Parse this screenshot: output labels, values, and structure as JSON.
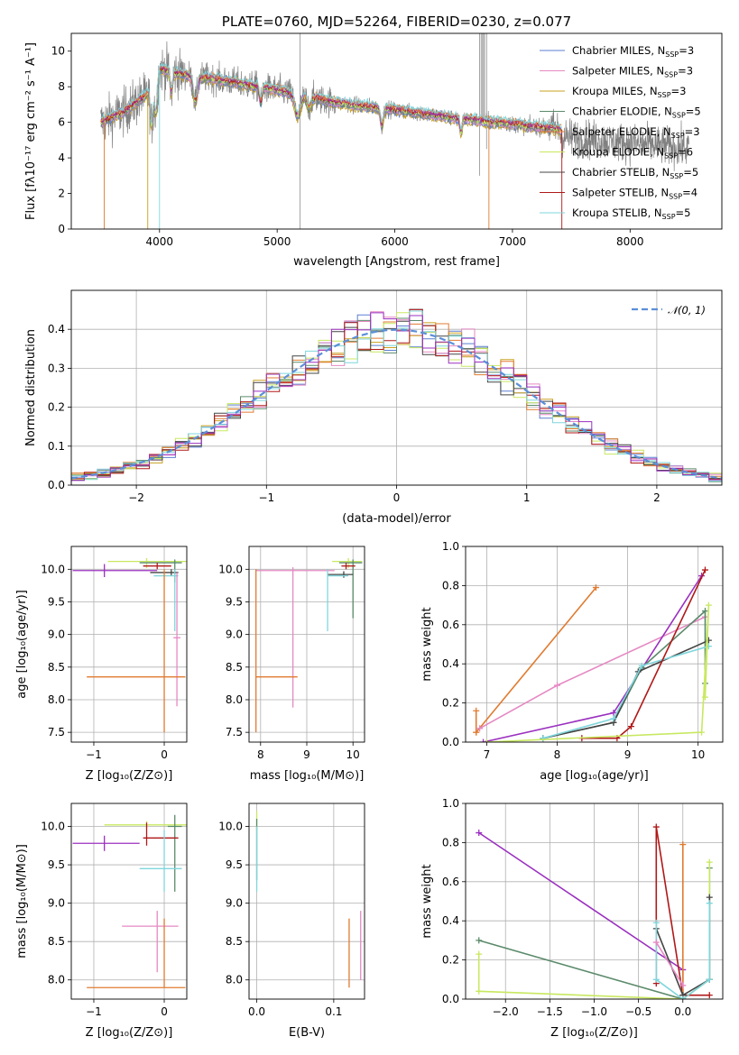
{
  "colors": {
    "Chabrier MILES": "#5b7fd0",
    "Salpeter MILES": "#e589c3",
    "Kroupa MILES": "#c8a020",
    "Chabrier ELODIE": "#5a8a6a",
    "Salpeter ELODIE": "#e07b30",
    "Kroupa ELODIE": "#c8e860",
    "Chabrier STELIB": "#444444",
    "Salpeter STELIB": "#b01818",
    "Kroupa STELIB": "#7fd6dc",
    "purple": "#9b30c0",
    "data": "#808080",
    "normal": "#5b8fd8"
  },
  "chart_data": [
    {
      "id": "spectrum",
      "type": "line",
      "title": "PLATE=0760, MJD=52264, FIBERID=0230, z=0.077",
      "xlabel": "wavelength [Angstrom, rest frame]",
      "ylabel": "Flux [fλ10⁻¹⁷ erg cm⁻² s⁻¹ A⁻¹]",
      "xlim": [
        3250,
        8780
      ],
      "ylim": [
        0,
        11
      ],
      "xticks": [
        4000,
        5000,
        6000,
        7000,
        8000
      ],
      "yticks": [
        0,
        2,
        4,
        6,
        8,
        10
      ],
      "grid": false,
      "legend": "top-right",
      "legend_entries": [
        {
          "label": "Chabrier MILES, N",
          "sub": "SSP",
          "val": "=3",
          "model": "Chabrier MILES"
        },
        {
          "label": "Salpeter MILES, N",
          "sub": "SSP",
          "val": "=3",
          "model": "Salpeter MILES"
        },
        {
          "label": "Kroupa MILES, N",
          "sub": "SSP",
          "val": "=3",
          "model": "Kroupa MILES"
        },
        {
          "label": "Chabrier ELODIE, N",
          "sub": "SSP",
          "val": "=5",
          "model": "Chabrier ELODIE"
        },
        {
          "label": "Salpeter ELODIE, N",
          "sub": "SSP",
          "val": "=3",
          "model": "Salpeter ELODIE"
        },
        {
          "label": "Kroupa ELODIE, N",
          "sub": "SSP",
          "val": "=6",
          "model": "Kroupa ELODIE"
        },
        {
          "label": "Chabrier STELIB, N",
          "sub": "SSP",
          "val": "=5",
          "model": "Chabrier STELIB"
        },
        {
          "label": "Salpeter STELIB, N",
          "sub": "SSP",
          "val": "=4",
          "model": "Salpeter STELIB"
        },
        {
          "label": "Kroupa STELIB, N",
          "sub": "SSP",
          "val": "=5",
          "model": "Kroupa STELIB"
        }
      ],
      "continuum": {
        "x": [
          3500,
          3700,
          3900,
          4000,
          4200,
          4500,
          5000,
          5500,
          6000,
          6500,
          7000,
          7400
        ],
        "y": [
          6.0,
          6.6,
          7.6,
          9.0,
          8.7,
          8.4,
          7.8,
          7.1,
          6.7,
          6.25,
          5.9,
          5.6
        ]
      },
      "data_range": [
        3500,
        8500
      ]
    },
    {
      "id": "residuals",
      "type": "histogram",
      "xlabel": "(data-model)/error",
      "ylabel": "Normed distribution",
      "xlim": [
        -2.5,
        2.5
      ],
      "ylim": [
        0,
        0.5
      ],
      "xticks": [
        -2,
        -1,
        0,
        1,
        2
      ],
      "yticks": [
        0.0,
        0.1,
        0.2,
        0.3,
        0.4
      ],
      "grid": true,
      "legend": "top-right",
      "legend_entries": [
        {
          "label": "𝒩(0, 1)"
        }
      ],
      "series": [
        {
          "name": "𝒩(0, 1)",
          "type": "line",
          "mean": 0,
          "sigma": 1
        }
      ],
      "bins": 50
    },
    {
      "id": "age_vs_Z",
      "type": "scatter",
      "xlabel": "Z [log₁₀(Z/Z⊙)]",
      "ylabel": "age  [log₁₀(age/yr)]",
      "xlim": [
        -1.32,
        0.32
      ],
      "ylim": [
        7.35,
        10.35
      ],
      "xticks": [
        -1,
        0
      ],
      "yticks": [
        7.5,
        8.0,
        8.5,
        9.0,
        9.5,
        10.0
      ],
      "grid": true,
      "points": [
        {
          "model": "Kroupa ELODIE",
          "x": -0.25,
          "y": 10.12,
          "xerr": [
            0.55,
            0.6
          ],
          "yerr": [
            0.1,
            0.05
          ]
        },
        {
          "model": "Chabrier ELODIE",
          "x": 0.15,
          "y": 10.1,
          "xerr": [
            0.5,
            0.1
          ],
          "yerr": [
            0.3,
            0.05
          ]
        },
        {
          "model": "Salpeter STELIB",
          "x": -0.1,
          "y": 10.05,
          "xerr": [
            0.2,
            0.2
          ],
          "yerr": [
            0.05,
            0.05
          ]
        },
        {
          "model": "purple",
          "x": -0.85,
          "y": 9.98,
          "xerr": [
            0.45,
            0.75
          ],
          "yerr": [
            0.1,
            0.1
          ]
        },
        {
          "model": "Chabrier STELIB",
          "x": 0.1,
          "y": 9.95,
          "xerr": [
            0.3,
            0.1
          ],
          "yerr": [
            0.05,
            0.05
          ]
        },
        {
          "model": "Kroupa STELIB",
          "x": 0.15,
          "y": 9.9,
          "xerr": [
            0.3,
            0.05
          ],
          "yerr": [
            0.85,
            0.1
          ]
        },
        {
          "model": "Salpeter MILES",
          "x": 0.18,
          "y": 8.95,
          "xerr": [
            0.05,
            0.05
          ],
          "yerr": [
            1.05,
            1.0
          ]
        },
        {
          "model": "Salpeter ELODIE",
          "x": 0.0,
          "y": 8.35,
          "xerr": [
            1.1,
            0.3
          ],
          "yerr": [
            0.85,
            1.65
          ]
        }
      ]
    },
    {
      "id": "age_vs_mass",
      "type": "scatter",
      "xlabel": "mass [log₁₀(M/M⊙)]",
      "ylabel": "",
      "xlim": [
        7.75,
        10.25
      ],
      "ylim": [
        7.35,
        10.35
      ],
      "xticks": [
        8,
        9,
        10
      ],
      "yticks": [
        7.5,
        8.0,
        8.5,
        9.0,
        9.5,
        10.0
      ],
      "grid": true,
      "points": [
        {
          "model": "Kroupa ELODIE",
          "x": 9.9,
          "y": 10.12,
          "xerr": [
            0.35,
            0.3
          ],
          "yerr": [
            0.1,
            0.05
          ]
        },
        {
          "model": "Chabrier ELODIE",
          "x": 10.0,
          "y": 10.1,
          "xerr": [
            0.3,
            0.2
          ],
          "yerr": [
            0.85,
            0.05
          ]
        },
        {
          "model": "Salpeter STELIB",
          "x": 9.85,
          "y": 10.05,
          "xerr": [
            0.1,
            0.2
          ],
          "yerr": [
            0.05,
            0.05
          ]
        },
        {
          "model": "Salpeter MILES",
          "x": 8.7,
          "y": 9.98,
          "xerr": [
            0.8,
            0.9
          ],
          "yerr": [
            2.1,
            0.05
          ]
        },
        {
          "model": "Chabrier STELIB",
          "x": 9.8,
          "y": 9.92,
          "xerr": [
            0.35,
            0.2
          ],
          "yerr": [
            0.05,
            0.05
          ]
        },
        {
          "model": "Kroupa STELIB",
          "x": 9.45,
          "y": 9.9,
          "xerr": [
            0.0,
            0.45
          ],
          "yerr": [
            0.85,
            0.1
          ]
        },
        {
          "model": "Salpeter ELODIE",
          "x": 7.9,
          "y": 8.35,
          "xerr": [
            0.0,
            0.9
          ],
          "yerr": [
            0.85,
            1.65
          ]
        }
      ]
    },
    {
      "id": "weight_vs_age",
      "type": "line",
      "xlabel": "age  [log₁₀(age/yr)]",
      "ylabel": "mass weight",
      "xlim": [
        6.7,
        10.35
      ],
      "ylim": [
        0,
        1.0
      ],
      "xticks": [
        7,
        8,
        9,
        10
      ],
      "yticks": [
        0.0,
        0.2,
        0.4,
        0.6,
        0.8,
        1.0
      ],
      "grid": true,
      "series": [
        {
          "model": "Salpeter ELODIE",
          "x": [
            6.85,
            8.55
          ],
          "y": [
            0.05,
            0.79
          ]
        },
        {
          "model": "Salpeter ELODIE",
          "x": [
            6.85,
            6.85
          ],
          "y": [
            0.05,
            0.16
          ]
        },
        {
          "model": "Salpeter MILES",
          "x": [
            6.9,
            8.0,
            10.1
          ],
          "y": [
            0.07,
            0.29,
            0.64
          ]
        },
        {
          "model": "purple",
          "x": [
            6.95,
            8.8,
            10.05
          ],
          "y": [
            0.0,
            0.15,
            0.85
          ]
        },
        {
          "model": "Chabrier ELODIE",
          "x": [
            7.8,
            8.8,
            9.2,
            10.1,
            10.1
          ],
          "y": [
            0.02,
            0.1,
            0.38,
            0.67,
            0.3
          ]
        },
        {
          "model": "Chabrier STELIB",
          "x": [
            7.8,
            8.8,
            9.15,
            10.15
          ],
          "y": [
            0.02,
            0.1,
            0.36,
            0.52
          ]
        },
        {
          "model": "Kroupa STELIB",
          "x": [
            7.8,
            8.8,
            9.2,
            10.15
          ],
          "y": [
            0.02,
            0.12,
            0.39,
            0.49
          ]
        },
        {
          "model": "Salpeter STELIB",
          "x": [
            8.35,
            8.85,
            9.05,
            10.1
          ],
          "y": [
            0.02,
            0.02,
            0.08,
            0.88
          ]
        },
        {
          "model": "Kroupa ELODIE",
          "x": [
            7.0,
            10.05,
            10.15,
            10.1
          ],
          "y": [
            0.0,
            0.05,
            0.7,
            0.23
          ]
        }
      ]
    },
    {
      "id": "mass_vs_Z",
      "type": "scatter",
      "xlabel": "Z [log₁₀(Z/Z⊙)]",
      "ylabel": "mass [log₁₀(M/M⊙)]",
      "xlim": [
        -1.32,
        0.32
      ],
      "ylim": [
        7.75,
        10.3
      ],
      "xticks": [
        -1,
        0
      ],
      "yticks": [
        8.0,
        8.5,
        9.0,
        9.5,
        10.0
      ],
      "grid": true,
      "points": [
        {
          "model": "Kroupa ELODIE",
          "x": -0.25,
          "y": 10.02,
          "xerr": [
            0.6,
            0.6
          ],
          "yerr": [
            0.05,
            0.05
          ]
        },
        {
          "model": "Chabrier ELODIE",
          "x": 0.15,
          "y": 10.0,
          "xerr": [
            0.1,
            0.1
          ],
          "yerr": [
            0.85,
            0.15
          ]
        },
        {
          "model": "Salpeter STELIB",
          "x": -0.25,
          "y": 9.85,
          "xerr": [
            0.05,
            0.45
          ],
          "yerr": [
            0.1,
            0.2
          ]
        },
        {
          "model": "purple",
          "x": -0.85,
          "y": 9.78,
          "xerr": [
            0.45,
            0.5
          ],
          "yerr": [
            0.1,
            0.1
          ]
        },
        {
          "model": "Kroupa STELIB",
          "x": 0.0,
          "y": 9.45,
          "xerr": [
            0.35,
            0.25
          ],
          "yerr": [
            0.3,
            0.5
          ]
        },
        {
          "model": "Salpeter MILES",
          "x": -0.1,
          "y": 8.7,
          "xerr": [
            0.5,
            0.3
          ],
          "yerr": [
            0.6,
            0.2
          ]
        },
        {
          "model": "Salpeter ELODIE",
          "x": 0.0,
          "y": 7.9,
          "xerr": [
            1.1,
            0.3
          ],
          "yerr": [
            0.0,
            0.9
          ]
        }
      ]
    },
    {
      "id": "mass_vs_EBV",
      "type": "scatter",
      "xlabel": "E(B-V)",
      "ylabel": "",
      "xlim": [
        -0.01,
        0.14
      ],
      "ylim": [
        7.75,
        10.3
      ],
      "xticks": [
        0.0,
        0.1
      ],
      "yticks": [
        8.0,
        8.5,
        9.0,
        9.5,
        10.0
      ],
      "grid": true,
      "points": [
        {
          "model": "Kroupa ELODIE",
          "x": 0.0,
          "y": 10.1,
          "xerr": [
            0,
            0
          ],
          "yerr": [
            0.15,
            0.1
          ]
        },
        {
          "model": "Chabrier ELODIE",
          "x": 0.0,
          "y": 9.9,
          "xerr": [
            0,
            0
          ],
          "yerr": [
            0.6,
            0.2
          ]
        },
        {
          "model": "Kroupa STELIB",
          "x": 0.0,
          "y": 9.5,
          "xerr": [
            0,
            0
          ],
          "yerr": [
            0.35,
            0.5
          ]
        },
        {
          "model": "Salpeter ELODIE",
          "x": 0.12,
          "y": 8.35,
          "xerr": [
            0,
            0
          ],
          "yerr": [
            0.45,
            0.45
          ]
        },
        {
          "model": "Salpeter MILES",
          "x": 0.135,
          "y": 8.45,
          "xerr": [
            0,
            0
          ],
          "yerr": [
            0.45,
            0.45
          ]
        }
      ]
    },
    {
      "id": "weight_vs_Z",
      "type": "line",
      "xlabel": "Z [log₁₀(Z/Z⊙)]",
      "ylabel": "mass weight",
      "xlim": [
        -2.45,
        0.45
      ],
      "ylim": [
        0,
        1.0
      ],
      "xticks": [
        -2.0,
        -1.5,
        -1.0,
        -0.5,
        0.0
      ],
      "yticks": [
        0.0,
        0.2,
        0.4,
        0.6,
        0.8,
        1.0
      ],
      "grid": true,
      "series": [
        {
          "model": "purple",
          "x": [
            -2.3,
            0.0,
            0.0
          ],
          "y": [
            0.85,
            0.15,
            0.0
          ]
        },
        {
          "model": "Chabrier ELODIE",
          "x": [
            -2.3,
            0.0,
            0.3,
            0.3
          ],
          "y": [
            0.3,
            0.0,
            0.1,
            0.67
          ]
        },
        {
          "model": "Kroupa ELODIE",
          "x": [
            -2.3,
            -2.3,
            0.0,
            0.3,
            0.3
          ],
          "y": [
            0.23,
            0.04,
            0.0,
            0.1,
            0.7
          ]
        },
        {
          "model": "Salpeter STELIB",
          "x": [
            -0.3,
            -0.3,
            0.0,
            0.3
          ],
          "y": [
            0.08,
            0.88,
            0.02,
            0.02
          ]
        },
        {
          "model": "Salpeter ELODIE",
          "x": [
            0.0,
            0.0
          ],
          "y": [
            0.0,
            0.79
          ]
        },
        {
          "model": "Chabrier STELIB",
          "x": [
            -0.3,
            0.0,
            0.3,
            0.3
          ],
          "y": [
            0.36,
            0.02,
            0.1,
            0.52
          ]
        },
        {
          "model": "Kroupa STELIB",
          "x": [
            -0.3,
            -0.3,
            0.0,
            0.3,
            0.3
          ],
          "y": [
            0.39,
            0.1,
            0.0,
            0.1,
            0.49
          ]
        },
        {
          "model": "Salpeter MILES",
          "x": [
            -0.3,
            0.0
          ],
          "y": [
            0.29,
            0.07
          ]
        }
      ]
    }
  ]
}
